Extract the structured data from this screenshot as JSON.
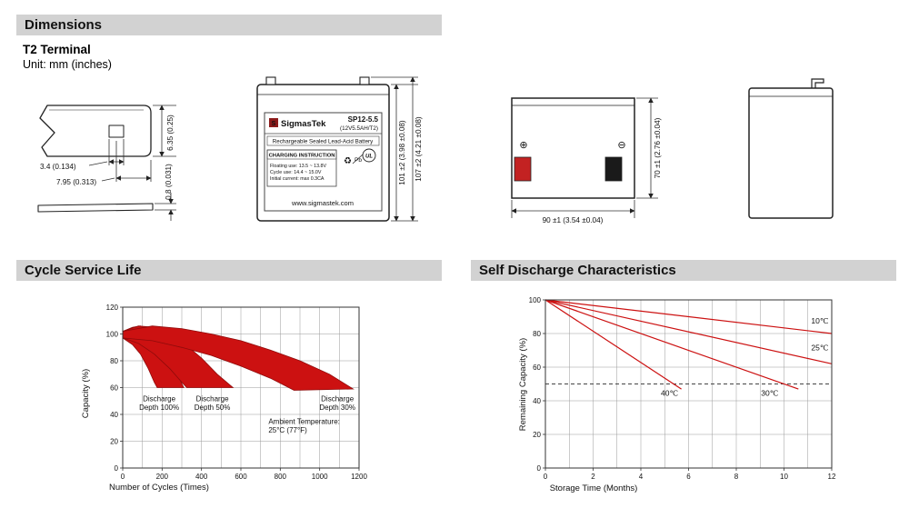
{
  "header": {
    "dimensions_title": "Dimensions",
    "cycle_title": "Cycle Service Life",
    "self_discharge_title": "Self Discharge Characteristics"
  },
  "terminal_section": {
    "subtitle": "T2 Terminal",
    "unit_note": "Unit: mm (inches)"
  },
  "terminal_drawing": {
    "hole_width": "3.4 (0.134)",
    "tab_length": "7.95 (0.313)",
    "tab_width": "6.35 (0.25)",
    "thickness": "0.8 (0.031)"
  },
  "front_view": {
    "brand": "SigmasTek",
    "model": "SP12-5.5",
    "rating": "(12V5.5AH/T2)",
    "battery_type": "Rechargeable Sealed Lead-Acid Battery",
    "charging_title": "CHARGING INSTRUCTION",
    "charging_lines": [
      "Floating use: 13.5 ~ 13.8V",
      "Cycle use: 14.4 ~ 15.0V",
      "Initial current: max 0.3CA"
    ],
    "website": "www.sigmastek.com",
    "pb_label": "Pb",
    "ul_label": "UL",
    "recycle_icon": "♻",
    "height_dim": "101 ±2 (3.98 ±0.08)",
    "total_height_dim": "107 ±2 (4.21 ±0.08)"
  },
  "top_view": {
    "plus_symbol": "⊕",
    "minus_symbol": "⊖",
    "depth_dim": "70 ±1 (2.76 ±0.04)",
    "width_dim": "90 ±1 (3.54 ±0.04)"
  },
  "colors": {
    "header_bg": "#d2d2d2",
    "terminal_positive_red": "#c32222",
    "terminal_negative_black": "#1a1a1a",
    "chart_red": "#cc1111"
  },
  "chart_data": [
    {
      "type": "area",
      "title": "Cycle Service Life",
      "xlabel": "Number of Cycles (Times)",
      "ylabel": "Capacity (%)",
      "xlim": [
        0,
        1200
      ],
      "ylim": [
        0,
        120
      ],
      "xticks": [
        0,
        200,
        400,
        600,
        800,
        1000,
        1200
      ],
      "yticks": [
        0,
        20,
        40,
        60,
        80,
        100,
        120
      ],
      "xgrid_step": 100,
      "ygrid_step": 20,
      "grid": true,
      "band_color": "#cc1111",
      "band_edge_color": "#8f0b0b",
      "bands": [
        {
          "name": "Discharge Depth 100%",
          "upper": [
            [
              0,
              102
            ],
            [
              50,
              105
            ],
            [
              90,
              106
            ],
            [
              140,
              102
            ],
            [
              190,
              93
            ],
            [
              240,
              80
            ],
            [
              290,
              66
            ],
            [
              310,
              60
            ]
          ],
          "lower": [
            [
              0,
              97
            ],
            [
              50,
              92
            ],
            [
              90,
              85
            ],
            [
              130,
              74
            ],
            [
              160,
              64
            ],
            [
              175,
              60
            ],
            [
              310,
              60
            ]
          ]
        },
        {
          "name": "Discharge Depth 50%",
          "upper": [
            [
              0,
              102
            ],
            [
              80,
              106
            ],
            [
              160,
              105
            ],
            [
              240,
              100
            ],
            [
              320,
              92
            ],
            [
              400,
              82
            ],
            [
              480,
              70
            ],
            [
              560,
              60
            ]
          ],
          "lower": [
            [
              0,
              97
            ],
            [
              80,
              93
            ],
            [
              160,
              85
            ],
            [
              240,
              74
            ],
            [
              300,
              64
            ],
            [
              325,
              60
            ],
            [
              560,
              60
            ]
          ]
        },
        {
          "name": "Discharge Depth 30%",
          "upper": [
            [
              0,
              102
            ],
            [
              150,
              106
            ],
            [
              300,
              104
            ],
            [
              450,
              100
            ],
            [
              600,
              95
            ],
            [
              750,
              88
            ],
            [
              900,
              80
            ],
            [
              1050,
              70
            ],
            [
              1170,
              59
            ]
          ],
          "lower": [
            [
              0,
              97
            ],
            [
              150,
              95
            ],
            [
              300,
              90
            ],
            [
              450,
              84
            ],
            [
              600,
              76
            ],
            [
              750,
              67
            ],
            [
              830,
              61
            ],
            [
              870,
              58
            ],
            [
              1170,
              59
            ]
          ]
        }
      ],
      "annotations": [
        {
          "lines": [
            "Discharge",
            "Depth 100%"
          ],
          "x": 185,
          "y": 50,
          "anchor": "middle"
        },
        {
          "lines": [
            "Discharge",
            "Depth 50%"
          ],
          "x": 455,
          "y": 50,
          "anchor": "middle"
        },
        {
          "lines": [
            "Discharge",
            "Depth 30%"
          ],
          "x": 1090,
          "y": 50,
          "anchor": "middle"
        },
        {
          "lines": [
            "Ambient Temperature:",
            "25°C (77°F)"
          ],
          "x": 740,
          "y": 33,
          "anchor": "start"
        }
      ]
    },
    {
      "type": "line",
      "title": "Self Discharge Characteristics",
      "xlabel": "Storage Time (Months)",
      "ylabel": "Remaining Capacity (%)",
      "xlim": [
        0,
        12
      ],
      "ylim": [
        0,
        100
      ],
      "xticks": [
        0,
        2,
        4,
        6,
        8,
        10,
        12
      ],
      "yticks": [
        0,
        20,
        40,
        60,
        80,
        100
      ],
      "xgrid_step": 1,
      "ygrid_step": 20,
      "grid": true,
      "line_color": "#cc1111",
      "reference_line": {
        "y": 50,
        "style": "dashed"
      },
      "series": [
        {
          "name": "10℃",
          "points": [
            [
              0,
              100
            ],
            [
              12,
              80
            ]
          ],
          "label": {
            "x": 11.5,
            "y": 86,
            "anchor": "middle"
          }
        },
        {
          "name": "25℃",
          "points": [
            [
              0,
              100
            ],
            [
              12,
              62
            ]
          ],
          "label": {
            "x": 11.5,
            "y": 70,
            "anchor": "middle"
          }
        },
        {
          "name": "30℃",
          "points": [
            [
              0,
              100
            ],
            [
              10.6,
              47
            ]
          ],
          "label": {
            "x": 9.4,
            "y": 43,
            "anchor": "middle"
          }
        },
        {
          "name": "40℃",
          "points": [
            [
              0,
              100
            ],
            [
              5.7,
              47
            ]
          ],
          "label": {
            "x": 5.2,
            "y": 43,
            "anchor": "middle"
          }
        }
      ]
    }
  ]
}
